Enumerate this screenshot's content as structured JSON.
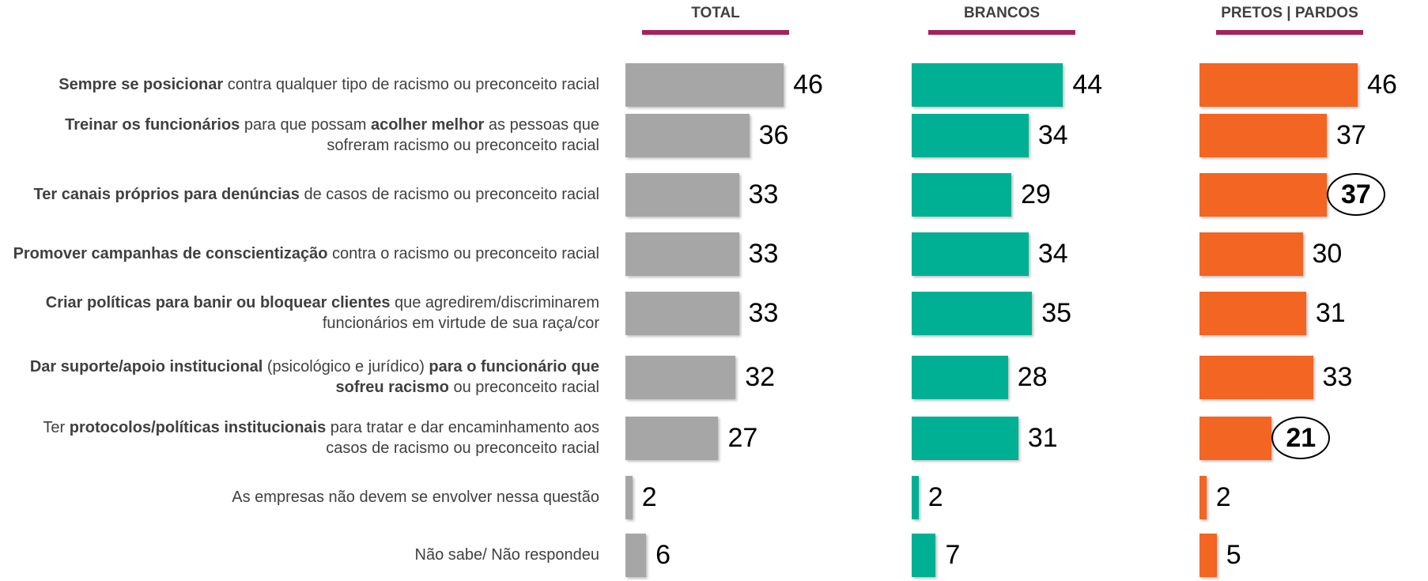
{
  "chart_data": {
    "type": "bar",
    "orientation": "horizontal",
    "categories": [
      [
        {
          "text": "Sempre se posicionar",
          "bold": true
        },
        {
          "text": " contra qualquer tipo de racismo ou preconceito racial",
          "bold": false
        }
      ],
      [
        {
          "text": "Treinar os funcionários",
          "bold": true
        },
        {
          "text": " para que possam ",
          "bold": false
        },
        {
          "text": "acolher melhor",
          "bold": true
        },
        {
          "text": " as pessoas que sofreram racismo ou preconceito racial",
          "bold": false
        }
      ],
      [
        {
          "text": "Ter canais próprios para denúncias",
          "bold": true
        },
        {
          "text": " de casos de racismo ou preconceito racial",
          "bold": false
        }
      ],
      [
        {
          "text": "Promover campanhas de conscientização",
          "bold": true
        },
        {
          "text": " contra o racismo ou preconceito racial",
          "bold": false
        }
      ],
      [
        {
          "text": "Criar políticas para banir ou bloquear clientes",
          "bold": true
        },
        {
          "text": " que agredirem/discriminarem funcionários em virtude de sua raça/cor",
          "bold": false
        }
      ],
      [
        {
          "text": "Dar suporte/apoio institucional",
          "bold": true
        },
        {
          "text": " (psicológico e jurídico) ",
          "bold": false
        },
        {
          "text": "para o funcionário que sofreu racismo",
          "bold": true
        },
        {
          "text": " ou preconceito racial",
          "bold": false
        }
      ],
      [
        {
          "text": "Ter ",
          "bold": false
        },
        {
          "text": "protocolos/políticas institucionais",
          "bold": true
        },
        {
          "text": " para tratar e dar encaminhamento aos casos de racismo ou preconceito racial",
          "bold": false
        }
      ],
      [
        {
          "text": "As empresas não devem se envolver nessa questão",
          "bold": false
        }
      ],
      [
        {
          "text": "Não sabe/ Não respondeu",
          "bold": false
        }
      ]
    ],
    "series": [
      {
        "name": "TOTAL",
        "color": "#a6a6a6",
        "values": [
          46,
          36,
          33,
          33,
          33,
          32,
          27,
          2,
          6
        ],
        "highlighted": []
      },
      {
        "name": "BRANCOS",
        "color": "#00b095",
        "values": [
          44,
          34,
          29,
          34,
          35,
          28,
          31,
          2,
          7
        ],
        "highlighted": []
      },
      {
        "name": "PRETOS | PARDOS",
        "color": "#f26522",
        "values": [
          46,
          37,
          37,
          30,
          31,
          33,
          21,
          2,
          5
        ],
        "highlighted": [
          2,
          6
        ]
      }
    ],
    "header_rule_color": "#a3245a"
  }
}
